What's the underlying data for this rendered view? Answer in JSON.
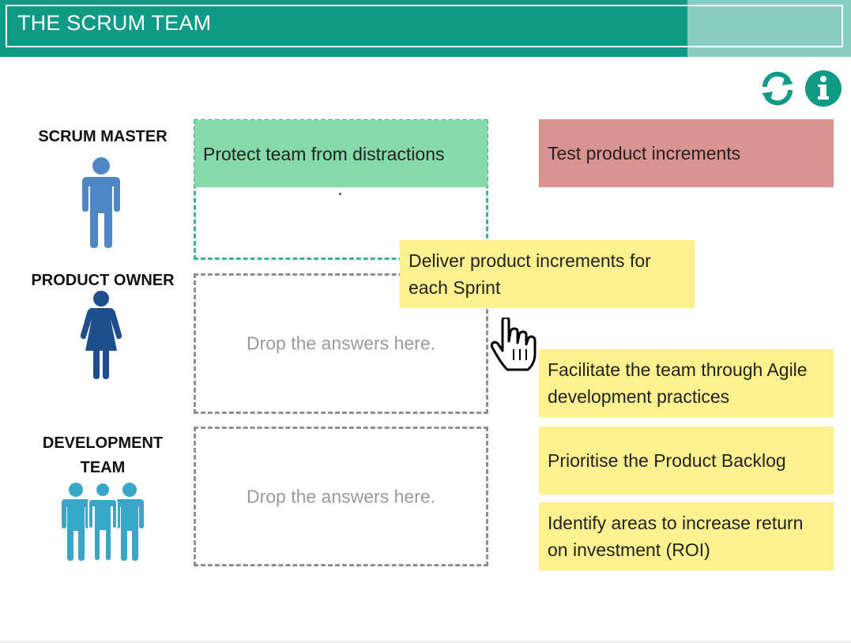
{
  "header": {
    "title": "THE SCRUM TEAM"
  },
  "toolbar": {
    "reset_icon": "refresh-icon",
    "info_icon": "info-icon"
  },
  "colors": {
    "teal": "#0e9a84",
    "yellow_card": "#fdf18f",
    "green_card": "#86d9a9",
    "red_card": "#d99390",
    "progress": 0.81
  },
  "roles": [
    {
      "label": "SCRUM MASTER",
      "icon": "person-icon"
    },
    {
      "label": "PRODUCT OWNER",
      "icon": "woman-icon"
    },
    {
      "label": "DEVELOPMENT TEAM",
      "icon": "group-icon"
    }
  ],
  "drop_zones": [
    {
      "placed": "Protect team from distractions",
      "hint": ""
    },
    {
      "placed": "",
      "hint": "Drop the answers here."
    },
    {
      "placed": "",
      "hint": "Drop the answers here."
    }
  ],
  "cards": [
    {
      "text": "Test product increments",
      "state": "incorrect"
    },
    {
      "text": "Deliver product increments for each Sprint",
      "state": "dragging"
    },
    {
      "text": "Facilitate the team through Agile development practices",
      "state": "available"
    },
    {
      "text": "Prioritise the Product Backlog",
      "state": "available"
    },
    {
      "text": "Identify areas to increase return on investment (ROI)",
      "state": "available"
    }
  ]
}
